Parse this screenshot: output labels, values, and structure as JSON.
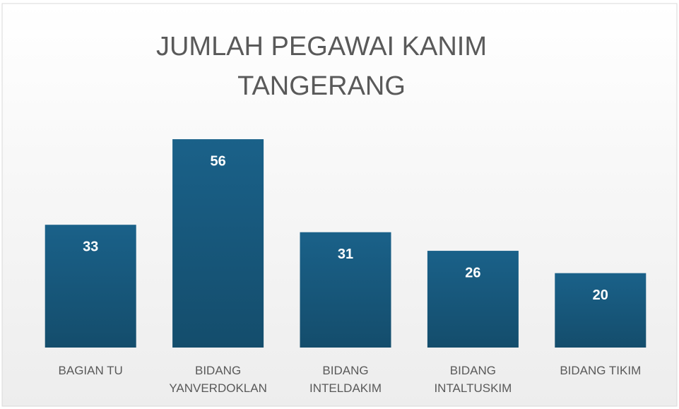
{
  "chart_data": {
    "type": "bar",
    "title": "JUMLAH PEGAWAI KANIM TANGERANG",
    "categories": [
      "BAGIAN TU",
      "BIDANG YANVERDOKLAN",
      "BIDANG INTELDAKIM",
      "BIDANG INTALTUSKIM",
      "BIDANG TIKIM"
    ],
    "values": [
      33,
      56,
      31,
      26,
      20
    ],
    "color": "#175b80",
    "ylim": [
      0,
      60
    ]
  }
}
